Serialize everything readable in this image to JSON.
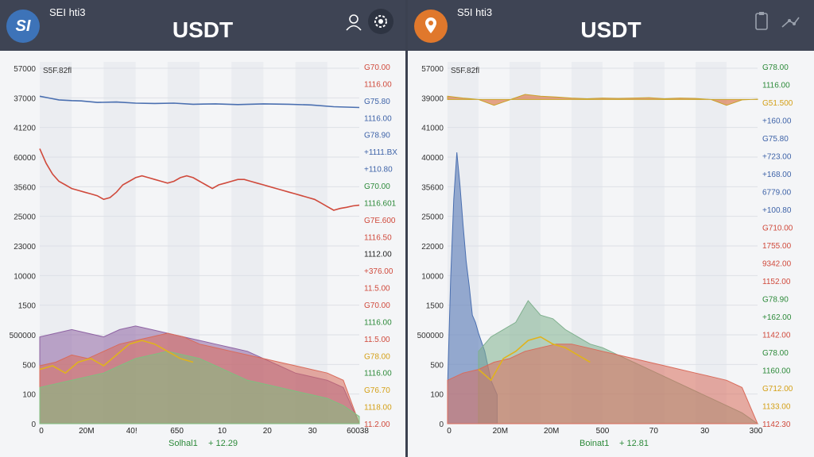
{
  "left": {
    "logo_text": "SI",
    "pair_label": "SEI hti3",
    "title": "USDT",
    "corner_label": "S5F.82fl",
    "footer_label": "Solhal1",
    "footer_value": "+ 12.29",
    "logo_color": "#3d73b8",
    "icons": [
      "user-icon",
      "settings-gear-icon"
    ],
    "chart_data": {
      "type": "line",
      "title": "",
      "y_tick_labels": [
        "57000",
        "37000",
        "41200",
        "60000",
        "35600",
        "25000",
        "23000",
        "10000",
        "1500",
        "500000",
        "500",
        "100",
        "0"
      ],
      "x_tick_labels": [
        "0",
        "20M",
        "40!",
        "650",
        "10",
        "20",
        "30",
        "60038"
      ],
      "right_labels": [
        {
          "text": "G70.00",
          "color": "#d04a3c"
        },
        {
          "text": "1116.00",
          "color": "#d04a3c"
        },
        {
          "text": "G75.80",
          "color": "#3e63a8"
        },
        {
          "text": "1116.00",
          "color": "#3e63a8"
        },
        {
          "text": "G78.90",
          "color": "#3e63a8"
        },
        {
          "text": "+1111.BX",
          "color": "#3e63a8"
        },
        {
          "text": "+110.80",
          "color": "#3e63a8"
        },
        {
          "text": "G70.00",
          "color": "#2d8a3a"
        },
        {
          "text": "1116.601",
          "color": "#2d8a3a"
        },
        {
          "text": "G7E.600",
          "color": "#d04a3c"
        },
        {
          "text": "1116.50",
          "color": "#d04a3c"
        },
        {
          "text": "1112.00",
          "color": "#222222"
        },
        {
          "text": "+376.00",
          "color": "#d04a3c"
        },
        {
          "text": "11.5.00",
          "color": "#d04a3c"
        },
        {
          "text": "G70.00",
          "color": "#d04a3c"
        },
        {
          "text": "1116.00",
          "color": "#2d8a3a"
        },
        {
          "text": "11.5.00",
          "color": "#d04a3c"
        },
        {
          "text": "G78.00",
          "color": "#d4a017"
        },
        {
          "text": "1116.00",
          "color": "#2d8a3a"
        },
        {
          "text": "G76.70",
          "color": "#d4a017"
        },
        {
          "text": "1118.00",
          "color": "#d4a017"
        },
        {
          "text": "11.2.00",
          "color": "#d04a3c"
        }
      ],
      "series": [
        {
          "color": "#4a6fb0",
          "kind": "line",
          "x": [
            0,
            3,
            6,
            10,
            13,
            18,
            24,
            30,
            36,
            42,
            48,
            55,
            62,
            70,
            78,
            85,
            92,
            100
          ],
          "y": [
            90.5,
            90,
            89.5,
            89.3,
            89.2,
            88.8,
            88.9,
            88.6,
            88.5,
            88.6,
            88.3,
            88.4,
            88.2,
            88.4,
            88.3,
            88.1,
            87.6,
            87.4
          ]
        },
        {
          "color": "#d04a3c",
          "kind": "line",
          "x": [
            0,
            2,
            4,
            6,
            8,
            10,
            12,
            14,
            16,
            18,
            20,
            22,
            24,
            26,
            28,
            30,
            32,
            34,
            36,
            38,
            40,
            42,
            44,
            46,
            48,
            50,
            52,
            54,
            56,
            58,
            60,
            62,
            64,
            66,
            68,
            70,
            72,
            74,
            76,
            78,
            80,
            82,
            84,
            86,
            88,
            90,
            92,
            94,
            96,
            98,
            100
          ],
          "y": [
            76,
            72,
            69,
            67,
            66,
            65,
            64.5,
            64,
            63.5,
            63,
            62,
            62.5,
            64,
            66,
            67,
            68,
            68.5,
            68,
            67.5,
            67,
            66.5,
            67,
            68,
            68.5,
            68,
            67,
            66,
            65,
            66,
            66.5,
            67,
            67.5,
            67.5,
            67,
            66.5,
            66,
            65.5,
            65,
            64.5,
            64,
            63.5,
            63,
            62.5,
            62,
            61,
            60,
            59,
            59.5,
            59.8,
            60.2,
            60.4
          ]
        },
        {
          "color": "#8e63a3",
          "kind": "area",
          "x": [
            0,
            5,
            10,
            15,
            20,
            25,
            30,
            35,
            40,
            45,
            50,
            55,
            60,
            65,
            70,
            75,
            80,
            85,
            90,
            95,
            100
          ],
          "y": [
            24,
            25,
            26,
            25,
            24,
            26,
            27,
            26,
            25,
            24,
            23,
            22,
            21,
            20,
            18,
            16,
            14,
            13,
            12,
            10,
            0
          ]
        },
        {
          "color": "#d96b5b",
          "kind": "area",
          "x": [
            0,
            5,
            10,
            15,
            20,
            25,
            30,
            35,
            40,
            45,
            50,
            55,
            60,
            65,
            70,
            75,
            80,
            85,
            90,
            95,
            100
          ],
          "y": [
            16,
            17,
            19,
            18,
            20,
            22,
            23,
            24,
            25,
            24,
            22,
            21,
            20,
            19,
            18,
            17,
            16,
            15,
            14,
            12,
            0
          ]
        },
        {
          "color": "#7fbf7f",
          "kind": "area",
          "x": [
            0,
            5,
            10,
            15,
            20,
            25,
            30,
            35,
            40,
            45,
            50,
            55,
            60,
            65,
            70,
            75,
            80,
            85,
            90,
            95,
            100
          ],
          "y": [
            10,
            11,
            12,
            13,
            14,
            16,
            18,
            19,
            20,
            19,
            18,
            16,
            14,
            12,
            11,
            10,
            9,
            8,
            7,
            5,
            2
          ]
        },
        {
          "color": "#e0b31c",
          "kind": "line",
          "x": [
            0,
            4,
            8,
            12,
            16,
            20,
            24,
            28,
            32,
            36,
            40,
            44,
            48
          ],
          "y": [
            15,
            16,
            14,
            17,
            18,
            16,
            19,
            22,
            23,
            22,
            20,
            18,
            17
          ]
        }
      ],
      "grid": true
    }
  },
  "right": {
    "logo_text": "",
    "pair_label": "S5I hti3",
    "title": "USDT",
    "corner_label": "S5F.82fl",
    "footer_label": "Boinat1",
    "footer_value": "+ 12.81",
    "logo_color": "#e0782c",
    "icons": [
      "clipboard-icon",
      "network-icon"
    ],
    "chart_data": {
      "type": "area",
      "title": "",
      "y_tick_labels": [
        "57000",
        "39000",
        "41000",
        "40000",
        "35600",
        "25000",
        "22000",
        "10000",
        "1500",
        "500000",
        "500",
        "100",
        "0"
      ],
      "x_tick_labels": [
        "0",
        "20M",
        "20M",
        "500",
        "70",
        "30",
        "300"
      ],
      "right_labels": [
        {
          "text": "G78.00",
          "color": "#2d8a3a"
        },
        {
          "text": "1116.00",
          "color": "#2d8a3a"
        },
        {
          "text": "G51.500",
          "color": "#d4a017"
        },
        {
          "text": "+160.00",
          "color": "#3e63a8"
        },
        {
          "text": "G75.80",
          "color": "#3e63a8"
        },
        {
          "text": "+723.00",
          "color": "#3e63a8"
        },
        {
          "text": "+168.00",
          "color": "#3e63a8"
        },
        {
          "text": "6779.00",
          "color": "#3e63a8"
        },
        {
          "text": "+100.80",
          "color": "#3e63a8"
        },
        {
          "text": "G710.00",
          "color": "#d04a3c"
        },
        {
          "text": "1755.00",
          "color": "#d04a3c"
        },
        {
          "text": "9342.00",
          "color": "#d04a3c"
        },
        {
          "text": "1152.00",
          "color": "#d04a3c"
        },
        {
          "text": "G78.90",
          "color": "#2d8a3a"
        },
        {
          "text": "+162.00",
          "color": "#2d8a3a"
        },
        {
          "text": "1142.00",
          "color": "#d04a3c"
        },
        {
          "text": "G78.00",
          "color": "#2d8a3a"
        },
        {
          "text": "1160.00",
          "color": "#2d8a3a"
        },
        {
          "text": "G712.00",
          "color": "#d4a017"
        },
        {
          "text": "1133.00",
          "color": "#d4a017"
        },
        {
          "text": "1142.30",
          "color": "#d04a3c"
        }
      ],
      "series": [
        {
          "color": "#d96b3a",
          "kind": "band",
          "x": [
            0,
            5,
            10,
            15,
            20,
            25,
            30,
            35,
            40,
            45,
            50,
            55,
            60,
            65,
            70,
            75,
            80,
            85,
            90,
            95,
            100
          ],
          "y": [
            90.5,
            90,
            89.6,
            88,
            89.5,
            91,
            90.5,
            90.3,
            90,
            89.8,
            90,
            89.9,
            90,
            90.1,
            89.8,
            90,
            89.9,
            89.6,
            88,
            89.5,
            89.7
          ]
        },
        {
          "color": "#4a6fb0",
          "kind": "area",
          "x": [
            0,
            1,
            2,
            3,
            4,
            5,
            6,
            7,
            8,
            9,
            10,
            12,
            14,
            16
          ],
          "y": [
            10,
            40,
            62,
            75,
            66,
            55,
            45,
            38,
            30,
            28,
            25,
            20,
            12,
            8
          ]
        },
        {
          "color": "#7fb08e",
          "kind": "area",
          "x": [
            10,
            14,
            18,
            22,
            26,
            30,
            34,
            38,
            42,
            46,
            50,
            55,
            60,
            65,
            70,
            75,
            80,
            85,
            90,
            95,
            100
          ],
          "y": [
            20,
            24,
            26,
            28,
            34,
            30,
            29,
            26,
            24,
            22,
            21,
            19,
            17,
            15,
            13,
            11,
            9,
            7,
            5,
            3,
            0
          ]
        },
        {
          "color": "#d96b5b",
          "kind": "area",
          "x": [
            0,
            5,
            10,
            15,
            20,
            25,
            30,
            35,
            40,
            45,
            50,
            55,
            60,
            65,
            70,
            75,
            80,
            85,
            90,
            95,
            100
          ],
          "y": [
            12,
            14,
            15,
            17,
            18,
            20,
            21,
            22,
            22,
            21,
            20,
            19,
            18,
            17,
            16,
            15,
            14,
            13,
            12,
            10,
            0
          ]
        },
        {
          "color": "#e0b31c",
          "kind": "line",
          "x": [
            10,
            14,
            18,
            22,
            26,
            30,
            34,
            38,
            42,
            46
          ],
          "y": [
            15,
            12,
            18,
            20,
            23,
            24,
            22,
            21,
            19,
            17
          ]
        }
      ],
      "grid": true
    }
  }
}
